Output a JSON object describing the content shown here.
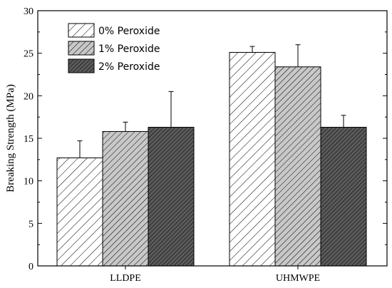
{
  "chart_data": {
    "type": "bar",
    "title": "",
    "xlabel": "",
    "ylabel": "Breaking Strength (MPa)",
    "ylim": [
      0,
      30
    ],
    "yticks": [
      0,
      5,
      10,
      15,
      20,
      25,
      30
    ],
    "grid": false,
    "legend_position": "top-left",
    "categories": [
      "LLDPE",
      "UHMWPE"
    ],
    "series": [
      {
        "name": "0% Peroxide",
        "values": [
          12.7,
          25.1
        ],
        "errors": [
          2.0,
          0.7
        ],
        "pattern": "hatch-sparse",
        "color": "#ffffff"
      },
      {
        "name": "1% Peroxide",
        "values": [
          15.8,
          23.4
        ],
        "errors": [
          1.1,
          2.6
        ],
        "pattern": "hatch-medium",
        "color": "#c8c8c8"
      },
      {
        "name": "2% Peroxide",
        "values": [
          16.3,
          16.3
        ],
        "errors": [
          4.2,
          1.4
        ],
        "pattern": "hatch-dense",
        "color": "#5a5a5a"
      }
    ]
  }
}
